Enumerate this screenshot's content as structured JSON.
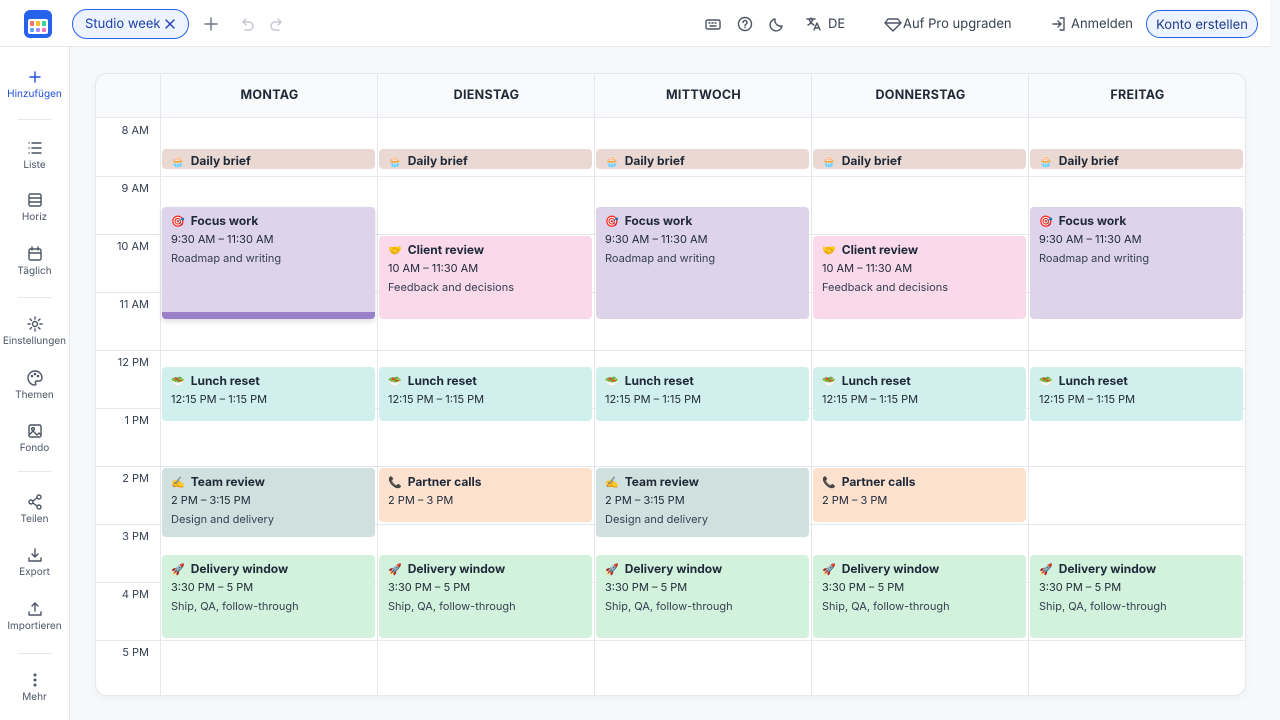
{
  "toolbar": {
    "tab": "Studio week",
    "language": "DE",
    "upgrade": "Auf Pro upgraden",
    "login": "Anmelden",
    "signup": "Konto erstellen"
  },
  "sidebar": [
    "Hinzufügen",
    "Liste",
    "Horiz",
    "Täglich",
    "Einstellungen",
    "Themen",
    "Fondo",
    "Teilen",
    "Export",
    "Importieren",
    "Mehr"
  ],
  "calendar": {
    "hours": [
      "8 AM",
      "9 AM",
      "10 AM",
      "11 AM",
      "12 PM",
      "1 PM",
      "2 PM",
      "3 PM",
      "4 PM",
      "5 PM"
    ],
    "days": [
      {
        "name": "MONTAG",
        "events": [
          {
            "icon": "🧁",
            "title": "Daily brief",
            "color": "#ead8d2"
          },
          {
            "icon": "🎯",
            "title": "Focus work",
            "time": "9:30 AM – 11:30 AM",
            "note": "Roadmap and writing",
            "color": "#ddd3ea"
          },
          {
            "icon": "🥗",
            "title": "Lunch reset",
            "time": "12:15 PM – 1:15 PM",
            "color": "#d1efed"
          },
          {
            "icon": "✍️",
            "title": "Team review",
            "time": "2 PM – 3:15 PM",
            "note": "Design and delivery",
            "color": "#cfe0df"
          },
          {
            "icon": "🚀",
            "title": "Delivery window",
            "time": "3:30 PM – 5 PM",
            "note": "Ship, QA, follow-through",
            "color": "#d3f2de"
          }
        ]
      },
      {
        "name": "DIENSTAG",
        "events": [
          {
            "icon": "🧁",
            "title": "Daily brief",
            "color": "#ead8d2"
          },
          {
            "icon": "🤝",
            "title": "Client review",
            "time": "10 AM – 11:30 AM",
            "note": "Feedback and decisions",
            "color": "#f9d9ea"
          },
          {
            "icon": "🥗",
            "title": "Lunch reset",
            "time": "12:15 PM – 1:15 PM",
            "color": "#d1efed"
          },
          {
            "icon": "📞",
            "title": "Partner calls",
            "time": "2 PM – 3 PM",
            "color": "#fde1cf"
          },
          {
            "icon": "🚀",
            "title": "Delivery window",
            "time": "3:30 PM – 5 PM",
            "note": "Ship, QA, follow-through",
            "color": "#d3f2de"
          }
        ]
      },
      {
        "name": "MITTWOCH",
        "events": [
          {
            "icon": "🧁",
            "title": "Daily brief",
            "color": "#ead8d2"
          },
          {
            "icon": "🎯",
            "title": "Focus work",
            "time": "9:30 AM – 11:30 AM",
            "note": "Roadmap and writing",
            "color": "#ddd3ea"
          },
          {
            "icon": "🥗",
            "title": "Lunch reset",
            "time": "12:15 PM – 1:15 PM",
            "color": "#d1efed"
          },
          {
            "icon": "✍️",
            "title": "Team review",
            "time": "2 PM – 3:15 PM",
            "note": "Design and delivery",
            "color": "#cfe0df"
          },
          {
            "icon": "🚀",
            "title": "Delivery window",
            "time": "3:30 PM – 5 PM",
            "note": "Ship, QA, follow-through",
            "color": "#d3f2de"
          }
        ]
      },
      {
        "name": "DONNERSTAG",
        "events": [
          {
            "icon": "🧁",
            "title": "Daily brief",
            "color": "#ead8d2"
          },
          {
            "icon": "🤝",
            "title": "Client review",
            "time": "10 AM – 11:30 AM",
            "note": "Feedback and decisions",
            "color": "#f9d9ea"
          },
          {
            "icon": "🥗",
            "title": "Lunch reset",
            "time": "12:15 PM – 1:15 PM",
            "color": "#d1efed"
          },
          {
            "icon": "📞",
            "title": "Partner calls",
            "time": "2 PM – 3 PM",
            "color": "#fde1cf"
          },
          {
            "icon": "🚀",
            "title": "Delivery window",
            "time": "3:30 PM – 5 PM",
            "note": "Ship, QA, follow-through",
            "color": "#d3f2de"
          }
        ]
      },
      {
        "name": "FREITAG",
        "events": [
          {
            "icon": "🧁",
            "title": "Daily brief",
            "color": "#ead8d2"
          },
          {
            "icon": "🎯",
            "title": "Focus work",
            "time": "9:30 AM – 11:30 AM",
            "note": "Roadmap and writing",
            "color": "#ddd3ea"
          },
          {
            "icon": "🥗",
            "title": "Lunch reset",
            "time": "12:15 PM – 1:15 PM",
            "color": "#d1efed"
          },
          {
            "icon": "🚀",
            "title": "Delivery window",
            "time": "3:30 PM – 5 PM",
            "note": "Ship, QA, follow-through",
            "color": "#d3f2de"
          }
        ]
      }
    ]
  }
}
